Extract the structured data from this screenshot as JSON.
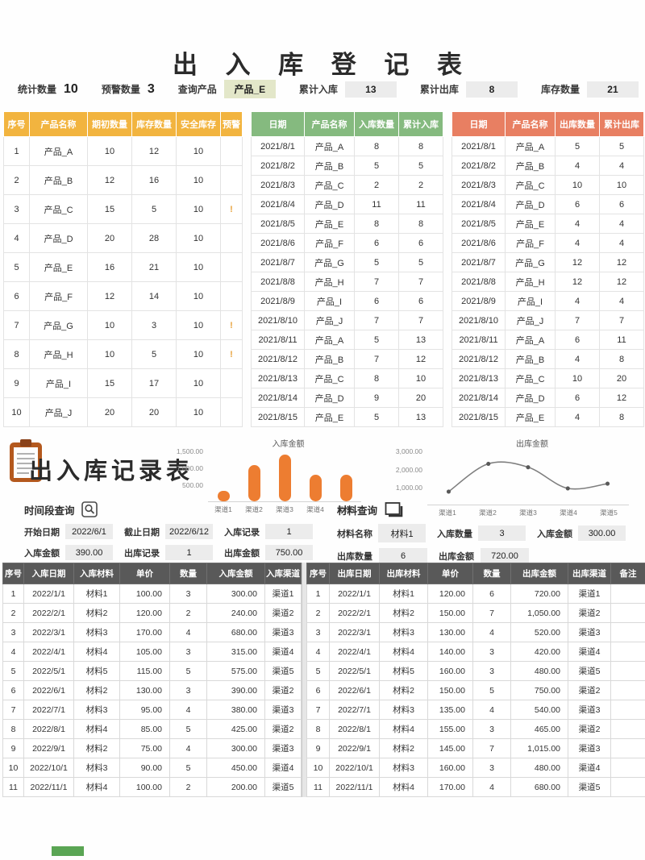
{
  "register": {
    "title": "出 入 库 登 记 表",
    "stats": {
      "count_label": "统计数量",
      "count_value": "10",
      "warn_label": "预警数量",
      "warn_value": "3",
      "query_label": "查询产品",
      "query_value": "产品_E",
      "in_label": "累计入库",
      "in_value": "13",
      "out_label": "累计出库",
      "out_value": "8",
      "stock_label": "库存数量",
      "stock_value": "21"
    },
    "inventory": {
      "headers": [
        "序号",
        "产品名称",
        "期初数量",
        "库存数量",
        "安全库存",
        "预警"
      ],
      "rows": [
        [
          "1",
          "产品_A",
          "10",
          "12",
          "10",
          ""
        ],
        [
          "2",
          "产品_B",
          "12",
          "16",
          "10",
          ""
        ],
        [
          "3",
          "产品_C",
          "15",
          "5",
          "10",
          "!"
        ],
        [
          "4",
          "产品_D",
          "20",
          "28",
          "10",
          ""
        ],
        [
          "5",
          "产品_E",
          "16",
          "21",
          "10",
          ""
        ],
        [
          "6",
          "产品_F",
          "12",
          "14",
          "10",
          ""
        ],
        [
          "7",
          "产品_G",
          "10",
          "3",
          "10",
          "!"
        ],
        [
          "8",
          "产品_H",
          "10",
          "5",
          "10",
          "!"
        ],
        [
          "9",
          "产品_I",
          "15",
          "17",
          "10",
          ""
        ],
        [
          "10",
          "产品_J",
          "20",
          "20",
          "10",
          ""
        ]
      ]
    },
    "inbound": {
      "headers": [
        "日期",
        "产品名称",
        "入库数量",
        "累计入库"
      ],
      "rows": [
        [
          "2021/8/1",
          "产品_A",
          "8",
          "8"
        ],
        [
          "2021/8/2",
          "产品_B",
          "5",
          "5"
        ],
        [
          "2021/8/3",
          "产品_C",
          "2",
          "2"
        ],
        [
          "2021/8/4",
          "产品_D",
          "11",
          "11"
        ],
        [
          "2021/8/5",
          "产品_E",
          "8",
          "8"
        ],
        [
          "2021/8/6",
          "产品_F",
          "6",
          "6"
        ],
        [
          "2021/8/7",
          "产品_G",
          "5",
          "5"
        ],
        [
          "2021/8/8",
          "产品_H",
          "7",
          "7"
        ],
        [
          "2021/8/9",
          "产品_I",
          "6",
          "6"
        ],
        [
          "2021/8/10",
          "产品_J",
          "7",
          "7"
        ],
        [
          "2021/8/11",
          "产品_A",
          "5",
          "13"
        ],
        [
          "2021/8/12",
          "产品_B",
          "7",
          "12"
        ],
        [
          "2021/8/13",
          "产品_C",
          "8",
          "10"
        ],
        [
          "2021/8/14",
          "产品_D",
          "9",
          "20"
        ],
        [
          "2021/8/15",
          "产品_E",
          "5",
          "13"
        ]
      ]
    },
    "outbound": {
      "headers": [
        "日期",
        "产品名称",
        "出库数量",
        "累计出库"
      ],
      "rows": [
        [
          "2021/8/1",
          "产品_A",
          "5",
          "5"
        ],
        [
          "2021/8/2",
          "产品_B",
          "4",
          "4"
        ],
        [
          "2021/8/3",
          "产品_C",
          "10",
          "10"
        ],
        [
          "2021/8/4",
          "产品_D",
          "6",
          "6"
        ],
        [
          "2021/8/5",
          "产品_E",
          "4",
          "4"
        ],
        [
          "2021/8/6",
          "产品_F",
          "4",
          "4"
        ],
        [
          "2021/8/7",
          "产品_G",
          "12",
          "12"
        ],
        [
          "2021/8/8",
          "产品_H",
          "12",
          "12"
        ],
        [
          "2021/8/9",
          "产品_I",
          "4",
          "4"
        ],
        [
          "2021/8/10",
          "产品_J",
          "7",
          "7"
        ],
        [
          "2021/8/11",
          "产品_A",
          "6",
          "11"
        ],
        [
          "2021/8/12",
          "产品_B",
          "4",
          "8"
        ],
        [
          "2021/8/13",
          "产品_C",
          "10",
          "20"
        ],
        [
          "2021/8/14",
          "产品_D",
          "6",
          "12"
        ],
        [
          "2021/8/15",
          "产品_E",
          "4",
          "8"
        ]
      ]
    }
  },
  "records": {
    "title": "出入库记录表",
    "time_query": {
      "section_label": "时间段查询",
      "fields": [
        {
          "label": "开始日期",
          "value": "2022/6/1"
        },
        {
          "label": "截止日期",
          "value": "2022/6/12"
        },
        {
          "label": "入库记录",
          "value": "1"
        },
        {
          "label": "入库金额",
          "value": "390.00"
        },
        {
          "label": "出库记录",
          "value": "1"
        },
        {
          "label": "出库金额",
          "value": "750.00"
        }
      ]
    },
    "material_query": {
      "section_label": "材料查询",
      "fields": [
        {
          "label": "材料名称",
          "value": "材料1"
        },
        {
          "label": "入库数量",
          "value": "3"
        },
        {
          "label": "入库金额",
          "value": "300.00"
        },
        {
          "label": "出库数量",
          "value": "6"
        },
        {
          "label": "出库金额",
          "value": "720.00"
        }
      ]
    },
    "inbound_table": {
      "headers": [
        "序号",
        "入库日期",
        "入库材料",
        "单价",
        "数量",
        "入库金额",
        "入库渠道"
      ],
      "rows": [
        [
          "1",
          "2022/1/1",
          "材料1",
          "100.00",
          "3",
          "300.00",
          "渠道1"
        ],
        [
          "2",
          "2022/2/1",
          "材料2",
          "120.00",
          "2",
          "240.00",
          "渠道2"
        ],
        [
          "3",
          "2022/3/1",
          "材料3",
          "170.00",
          "4",
          "680.00",
          "渠道3"
        ],
        [
          "4",
          "2022/4/1",
          "材料4",
          "105.00",
          "3",
          "315.00",
          "渠道4"
        ],
        [
          "5",
          "2022/5/1",
          "材料5",
          "115.00",
          "5",
          "575.00",
          "渠道5"
        ],
        [
          "6",
          "2022/6/1",
          "材料2",
          "130.00",
          "3",
          "390.00",
          "渠道2"
        ],
        [
          "7",
          "2022/7/1",
          "材料3",
          "95.00",
          "4",
          "380.00",
          "渠道3"
        ],
        [
          "8",
          "2022/8/1",
          "材料4",
          "85.00",
          "5",
          "425.00",
          "渠道2"
        ],
        [
          "9",
          "2022/9/1",
          "材料2",
          "75.00",
          "4",
          "300.00",
          "渠道3"
        ],
        [
          "10",
          "2022/10/1",
          "材料3",
          "90.00",
          "5",
          "450.00",
          "渠道4"
        ],
        [
          "11",
          "2022/11/1",
          "材料4",
          "100.00",
          "2",
          "200.00",
          "渠道5"
        ]
      ]
    },
    "outbound_table": {
      "headers": [
        "序号",
        "出库日期",
        "出库材料",
        "单价",
        "数量",
        "出库金额",
        "出库渠道",
        "备注"
      ],
      "rows": [
        [
          "1",
          "2022/1/1",
          "材料1",
          "120.00",
          "6",
          "720.00",
          "渠道1",
          ""
        ],
        [
          "2",
          "2022/2/1",
          "材料2",
          "150.00",
          "7",
          "1,050.00",
          "渠道2",
          ""
        ],
        [
          "3",
          "2022/3/1",
          "材料3",
          "130.00",
          "4",
          "520.00",
          "渠道3",
          ""
        ],
        [
          "4",
          "2022/4/1",
          "材料4",
          "140.00",
          "3",
          "420.00",
          "渠道4",
          ""
        ],
        [
          "5",
          "2022/5/1",
          "材料5",
          "160.00",
          "3",
          "480.00",
          "渠道5",
          ""
        ],
        [
          "6",
          "2022/6/1",
          "材料2",
          "150.00",
          "5",
          "750.00",
          "渠道2",
          ""
        ],
        [
          "7",
          "2022/7/1",
          "材料3",
          "135.00",
          "4",
          "540.00",
          "渠道3",
          ""
        ],
        [
          "8",
          "2022/8/1",
          "材料4",
          "155.00",
          "3",
          "465.00",
          "渠道2",
          ""
        ],
        [
          "9",
          "2022/9/1",
          "材料2",
          "145.00",
          "7",
          "1,015.00",
          "渠道3",
          ""
        ],
        [
          "10",
          "2022/10/1",
          "材料3",
          "160.00",
          "3",
          "480.00",
          "渠道4",
          ""
        ],
        [
          "11",
          "2022/11/1",
          "材料4",
          "170.00",
          "4",
          "680.00",
          "渠道5",
          ""
        ]
      ]
    }
  },
  "chart_data": [
    {
      "type": "bar",
      "title": "入库金额",
      "categories": [
        "渠道1",
        "渠道2",
        "渠道3",
        "渠道4",
        "渠道5"
      ],
      "values": [
        300,
        1055,
        1360,
        765,
        775
      ],
      "yticks_top_down": [
        "1,500.00",
        "1,000.00",
        "500.00"
      ],
      "ylim": [
        0,
        1500
      ],
      "xlabel": "",
      "ylabel": "",
      "grid": false,
      "legend": "none",
      "bar_color": "#ed7d31"
    },
    {
      "type": "line",
      "title": "出库金额",
      "categories": [
        "渠道1",
        "渠道2",
        "渠道3",
        "渠道4",
        "渠道5"
      ],
      "values": [
        720,
        2265,
        2075,
        900,
        1160
      ],
      "yticks_top_down": [
        "3,000.00",
        "2,000.00",
        "1,000.00"
      ],
      "ylim": [
        0,
        3000
      ],
      "xlabel": "",
      "ylabel": "",
      "grid": false,
      "legend": "none",
      "line_color": "#7f7f7f",
      "marker_color": "#595959"
    }
  ],
  "colors": {
    "inventory_header": "#f2b43f",
    "inbound_header": "#85ba7f",
    "outbound_header": "#e87f62",
    "record_header": "#595959",
    "value_box": "#ececec",
    "query_highlight": "#e3e7c9",
    "warning": "#e8a33d",
    "sheet_tab": "#5aa554"
  }
}
